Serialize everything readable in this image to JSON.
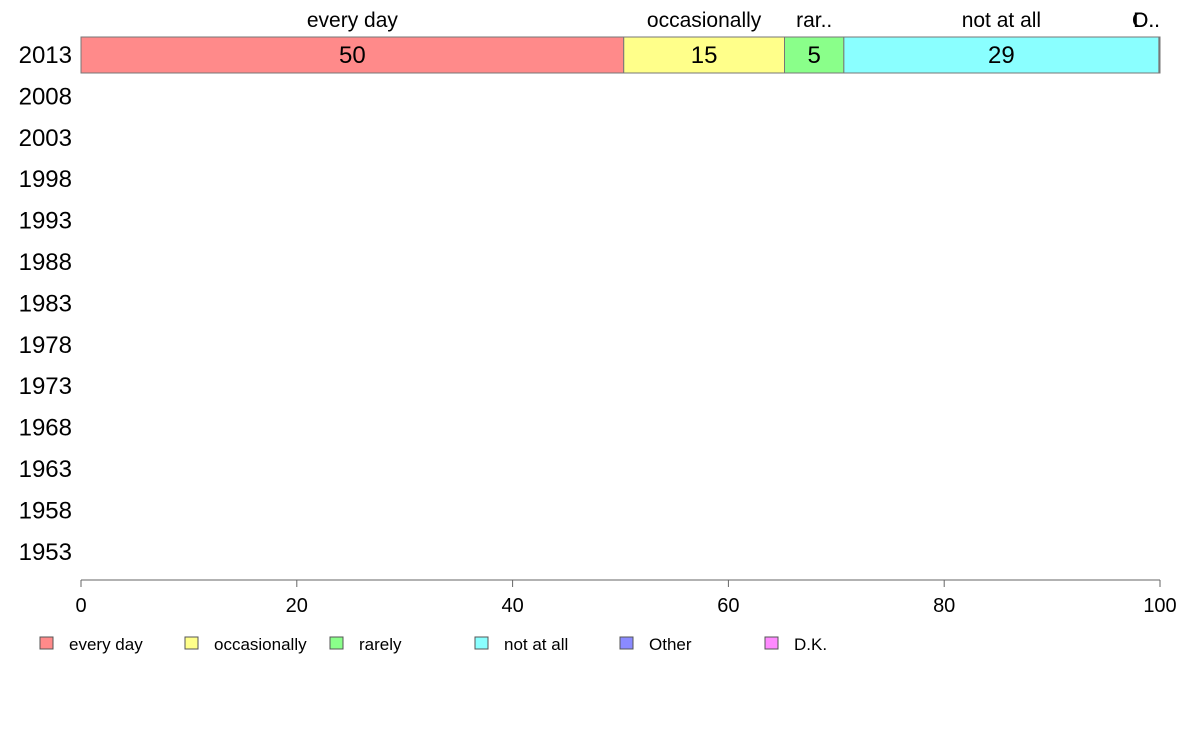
{
  "chart_data": {
    "type": "bar",
    "orientation": "horizontal",
    "stacked": true,
    "percent_stacked": true,
    "categories": [
      "2013",
      "2008",
      "2003",
      "1998",
      "1993",
      "1988",
      "1983",
      "1978",
      "1973",
      "1968",
      "1963",
      "1958",
      "1953"
    ],
    "series": [
      {
        "name": "every day",
        "short_label": "every day",
        "color": "#ff8a8a",
        "values": [
          50.3,
          null,
          null,
          null,
          null,
          null,
          null,
          null,
          null,
          null,
          null,
          null,
          null
        ],
        "data_labels": [
          "50"
        ]
      },
      {
        "name": "occasionally",
        "short_label": "occasionally",
        "color": "#ffff8a",
        "values": [
          14.9,
          null,
          null,
          null,
          null,
          null,
          null,
          null,
          null,
          null,
          null,
          null,
          null
        ],
        "data_labels": [
          "15"
        ]
      },
      {
        "name": "rarely",
        "short_label": "rar..",
        "color": "#8aff8a",
        "values": [
          5.5,
          null,
          null,
          null,
          null,
          null,
          null,
          null,
          null,
          null,
          null,
          null,
          null
        ],
        "data_labels": [
          "5"
        ]
      },
      {
        "name": "not at all",
        "short_label": "not at all",
        "color": "#8affff",
        "values": [
          29.2,
          null,
          null,
          null,
          null,
          null,
          null,
          null,
          null,
          null,
          null,
          null,
          null
        ],
        "data_labels": [
          "29"
        ]
      },
      {
        "name": "Other",
        "short_label": "O..",
        "color": "#8a8aff",
        "values": [
          0.05,
          null,
          null,
          null,
          null,
          null,
          null,
          null,
          null,
          null,
          null,
          null,
          null
        ],
        "data_labels": [
          ""
        ]
      },
      {
        "name": "D.K.",
        "short_label": "D..",
        "color": "#ff8aff",
        "values": [
          0.05,
          null,
          null,
          null,
          null,
          null,
          null,
          null,
          null,
          null,
          null,
          null,
          null
        ],
        "data_labels": [
          ""
        ]
      }
    ],
    "xlim": [
      0,
      100
    ],
    "xticks": [
      "0",
      "20",
      "40",
      "60",
      "80",
      "100"
    ],
    "title": "",
    "xlabel": "",
    "ylabel": "",
    "grid": false,
    "legend_position": "bottom"
  }
}
